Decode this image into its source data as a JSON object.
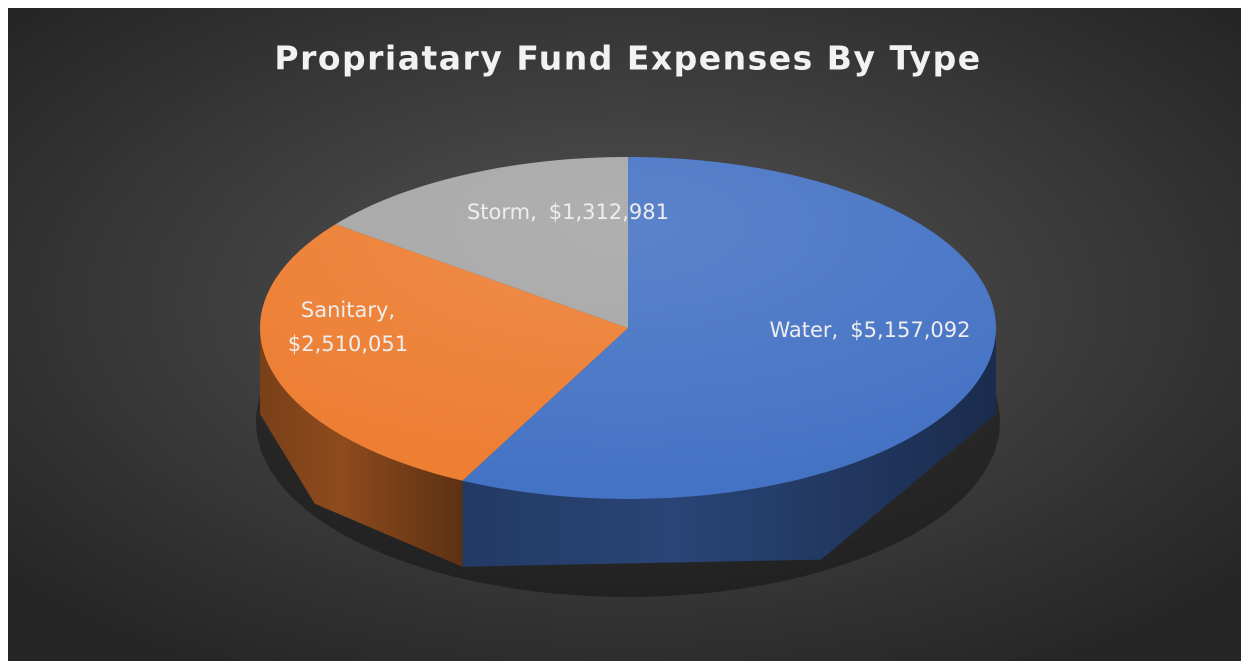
{
  "chart_data": {
    "type": "pie3d",
    "title": "Propriatary Fund Expenses By Type",
    "categories": [
      "Water,",
      "Sanitary,",
      "Storm,"
    ],
    "values": [
      5157092,
      2510051,
      1312981
    ],
    "value_labels": [
      "$5,157,092",
      "$2,510,051",
      "$1,312,981"
    ],
    "colors": [
      "#4472c4",
      "#ed7d31",
      "#a5a5a5"
    ]
  }
}
